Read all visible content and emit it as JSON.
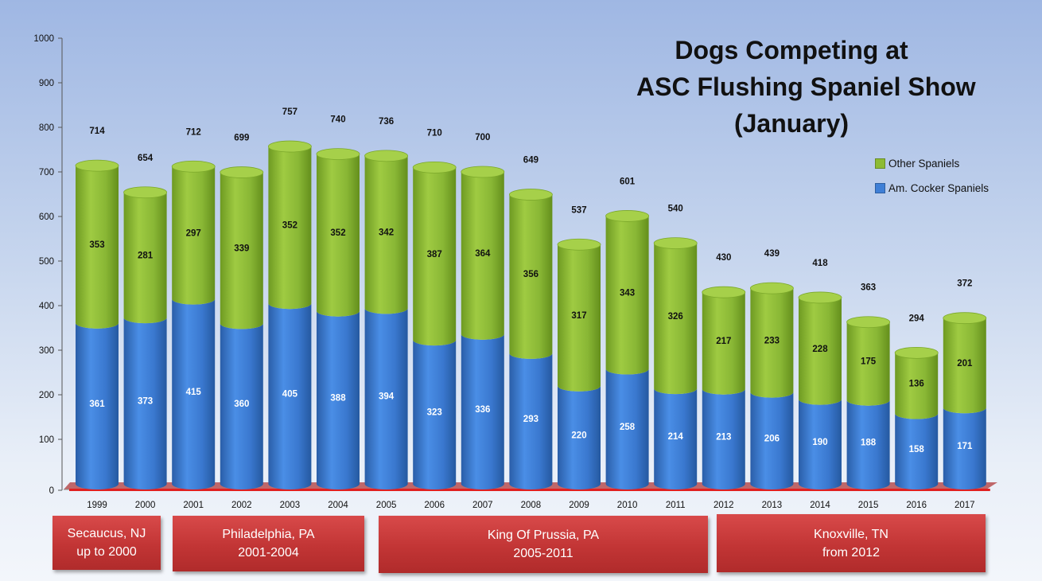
{
  "chart_data": {
    "type": "bar",
    "stacked": true,
    "title_lines": [
      "Dogs Competing at",
      "ASC Flushing Spaniel Show",
      "(January)"
    ],
    "categories": [
      "1999",
      "2000",
      "2001",
      "2002",
      "2003",
      "2004",
      "2005",
      "2006",
      "2007",
      "2008",
      "2009",
      "2010",
      "2011",
      "2012",
      "2013",
      "2014",
      "2015",
      "2016",
      "2017"
    ],
    "series": [
      {
        "name": "Am. Cocker Spaniels",
        "color": "#3f7fd6",
        "values": [
          361,
          373,
          415,
          360,
          405,
          388,
          394,
          323,
          336,
          293,
          220,
          258,
          214,
          213,
          206,
          190,
          188,
          158,
          171
        ]
      },
      {
        "name": "Other Spaniels",
        "color": "#8dbb34",
        "values": [
          353,
          281,
          297,
          339,
          352,
          352,
          342,
          387,
          364,
          356,
          317,
          343,
          326,
          217,
          233,
          228,
          175,
          136,
          201
        ]
      }
    ],
    "totals": [
      714,
      654,
      712,
      699,
      757,
      740,
      736,
      710,
      700,
      649,
      537,
      601,
      540,
      430,
      439,
      418,
      363,
      294,
      372
    ],
    "ylim": [
      0,
      1000
    ],
    "yticks": [
      0,
      100,
      200,
      300,
      400,
      500,
      600,
      700,
      800,
      900,
      1000
    ],
    "legend_position": "right",
    "grid": false
  },
  "locations": [
    {
      "line1": "Secaucus, NJ",
      "line2": "up to 2000",
      "start": 0,
      "end": 1
    },
    {
      "line1": "Philadelphia, PA",
      "line2": "2001-2004",
      "start": 2,
      "end": 5
    },
    {
      "line1": "King Of Prussia, PA",
      "line2": "2005-2011",
      "start": 6,
      "end": 12
    },
    {
      "line1": "Knoxville, TN",
      "line2": "from 2012",
      "start": 13,
      "end": 18
    }
  ]
}
